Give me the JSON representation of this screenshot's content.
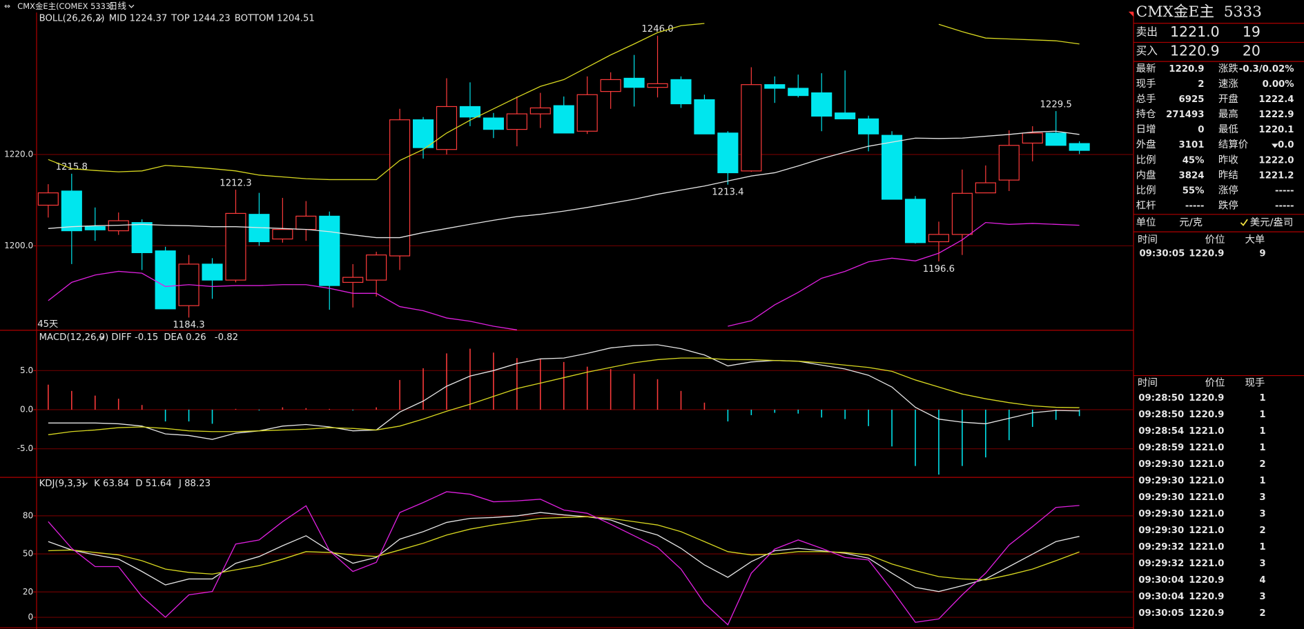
{
  "top_bar": {
    "symbol": "CMX金E主(COMEX 5333)",
    "period": "日线"
  },
  "main": {
    "indicator": "BOLL(26,26,2)",
    "mid_label": "MID 1224.37",
    "top_label": "TOP 1244.23",
    "bottom_label": "BOTTOM 1204.51",
    "span": "45天",
    "ylim": [
      1181.6,
      1251.1
    ],
    "yticks": [
      {
        "value": 1220,
        "label": "1220.0"
      },
      {
        "value": 1200,
        "label": "1200.0"
      }
    ],
    "up_color": "#ff3b3b",
    "down_color": "#00e6ee",
    "candles": {
      "open": [
        1208.9,
        1212.0,
        1204.2,
        1203.3,
        1205.1,
        1198.9,
        1186.9,
        1196.0,
        1192.5,
        1206.9,
        1201.5,
        1203.6,
        1206.5,
        1192.0,
        1192.5,
        1197.8,
        1227.6,
        1221.1,
        1230.5,
        1228.0,
        1225.5,
        1228.9,
        1230.7,
        1225.1,
        1233.8,
        1236.7,
        1234.7,
        1236.4,
        1232.0,
        1224.7,
        1216.4,
        1235.3,
        1234.5,
        1233.5,
        1229.1,
        1227.8,
        1224.2,
        1210.2,
        1200.9,
        1202.5,
        1211.6,
        1214.4,
        1222.5,
        1224.7,
        1222.4
      ],
      "high": [
        1213.5,
        1215.8,
        1208.4,
        1207.3,
        1205.8,
        1199.8,
        1198.0,
        1197.3,
        1212.3,
        1211.6,
        1210.5,
        1209.8,
        1207.5,
        1196.0,
        1198.7,
        1230.0,
        1228.2,
        1236.7,
        1235.8,
        1229.1,
        1232.7,
        1233.5,
        1232.7,
        1237.1,
        1238.0,
        1241.8,
        1246.0,
        1237.1,
        1233.1,
        1225.1,
        1239.1,
        1237.1,
        1237.5,
        1237.8,
        1238.4,
        1228.5,
        1225.1,
        1210.9,
        1205.3,
        1216.7,
        1217.6,
        1225.3,
        1226.2,
        1229.5,
        1222.9
      ],
      "low": [
        1206.2,
        1196.0,
        1201.1,
        1202.4,
        1194.7,
        1186.2,
        1184.3,
        1188.4,
        1192.0,
        1200.0,
        1200.7,
        1201.1,
        1186.0,
        1186.5,
        1188.9,
        1194.7,
        1219.1,
        1220.0,
        1226.2,
        1223.6,
        1221.8,
        1225.8,
        1224.7,
        1224.5,
        1230.0,
        1230.5,
        1232.5,
        1230.2,
        1224.5,
        1213.4,
        1216.2,
        1231.3,
        1232.5,
        1225.1,
        1227.8,
        1220.7,
        1210.2,
        1200.5,
        1196.6,
        1198.0,
        1211.6,
        1212.0,
        1218.5,
        1222.0,
        1220.1
      ],
      "close": [
        1211.6,
        1203.3,
        1203.5,
        1205.5,
        1198.5,
        1186.2,
        1196.0,
        1192.5,
        1207.1,
        1200.9,
        1203.6,
        1206.5,
        1191.3,
        1193.1,
        1198.0,
        1227.6,
        1221.5,
        1230.5,
        1228.2,
        1225.5,
        1228.9,
        1230.2,
        1224.7,
        1233.1,
        1236.4,
        1234.7,
        1235.5,
        1231.1,
        1224.5,
        1216.0,
        1235.3,
        1234.5,
        1232.9,
        1228.4,
        1227.8,
        1224.5,
        1210.2,
        1200.7,
        1202.5,
        1211.5,
        1213.8,
        1222.0,
        1224.7,
        1222.0,
        1220.9
      ],
      "high_labels": [
        null,
        "1215.8",
        null,
        null,
        null,
        null,
        null,
        null,
        "1212.3",
        null,
        null,
        null,
        null,
        null,
        null,
        null,
        null,
        null,
        null,
        null,
        null,
        null,
        null,
        null,
        null,
        null,
        "1246.0",
        null,
        null,
        null,
        null,
        null,
        null,
        null,
        null,
        null,
        null,
        null,
        null,
        null,
        null,
        null,
        null,
        "1229.5",
        null
      ],
      "low_labels": [
        null,
        null,
        null,
        null,
        null,
        null,
        "1184.3",
        null,
        null,
        null,
        null,
        null,
        null,
        null,
        null,
        null,
        null,
        null,
        null,
        null,
        null,
        null,
        null,
        null,
        null,
        null,
        null,
        null,
        null,
        "1213.4",
        null,
        null,
        null,
        null,
        null,
        null,
        null,
        null,
        "1196.6",
        null,
        null,
        null,
        null,
        null,
        null
      ]
    },
    "mid": {
      "color": "#e6e6e6",
      "values": [
        1203.8,
        1204.2,
        1204.4,
        1204.5,
        1204.7,
        1204.5,
        1204.4,
        1204.2,
        1204.2,
        1204.0,
        1203.8,
        1203.6,
        1203.1,
        1202.4,
        1201.8,
        1201.8,
        1202.9,
        1203.8,
        1204.7,
        1205.6,
        1206.4,
        1206.9,
        1207.6,
        1208.4,
        1209.3,
        1210.2,
        1211.3,
        1212.2,
        1213.1,
        1214.2,
        1215.3,
        1216.0,
        1217.5,
        1219.1,
        1220.5,
        1221.8,
        1222.7,
        1223.6,
        1223.5,
        1223.6,
        1224.0,
        1224.4,
        1224.9,
        1225.1,
        1224.4
      ]
    },
    "top": {
      "color": "#d8d820",
      "values": [
        1218.9,
        1216.9,
        1216.5,
        1216.2,
        1216.4,
        1217.6,
        1217.3,
        1216.9,
        1216.4,
        1215.5,
        1215.1,
        1214.7,
        1214.5,
        1214.5,
        1214.5,
        1218.7,
        1221.1,
        1224.7,
        1227.5,
        1230.0,
        1232.5,
        1234.9,
        1236.4,
        1239.1,
        1241.8,
        1244.2,
        1246.7,
        1248.2,
        1248.7,
        null,
        null,
        null,
        null,
        null,
        null,
        null,
        null,
        null,
        1248.5,
        1246.9,
        1245.5,
        1245.3,
        1245.1,
        1244.9,
        1244.2
      ]
    },
    "bottom": {
      "color": "#e020e0",
      "values": [
        1188.0,
        1192.0,
        1193.6,
        1194.4,
        1194.0,
        1191.1,
        1191.5,
        1191.1,
        1191.3,
        1191.3,
        1191.5,
        1191.5,
        1190.7,
        1189.6,
        1189.6,
        1186.7,
        1185.8,
        1184.2,
        1183.5,
        1182.4,
        1181.6,
        null,
        null,
        null,
        null,
        null,
        null,
        null,
        null,
        1182.4,
        1183.6,
        1187.1,
        1189.8,
        1192.9,
        1194.4,
        1196.5,
        1197.3,
        1196.7,
        1198.4,
        1201.3,
        1205.1,
        1204.7,
        1204.9,
        1204.7,
        1204.5
      ]
    }
  },
  "macd": {
    "indicator": "MACD(12,26,9)",
    "diff_label": "DIFF -0.15",
    "dea_label": "DEA 0.26",
    "macd_label": "-0.82",
    "ylim": [
      -8.6,
      10.1
    ],
    "yticks": [
      {
        "value": 5,
        "label": "5.0"
      },
      {
        "value": 0,
        "label": "0.0"
      },
      {
        "value": -5,
        "label": "-5.0"
      }
    ],
    "histogram": [
      3.2,
      2.4,
      1.8,
      1.4,
      0.6,
      -1.5,
      -1.5,
      -1.8,
      0.1,
      -0.1,
      0.3,
      0.2,
      0.1,
      -0.1,
      0.3,
      3.8,
      5.3,
      7.2,
      7.8,
      7.3,
      6.6,
      6.5,
      6.1,
      5.5,
      5.2,
      4.6,
      3.9,
      2.4,
      0.9,
      -1.5,
      -0.7,
      -0.4,
      -0.5,
      -1.0,
      -1.2,
      -2.1,
      -4.7,
      -7.2,
      -8.3,
      -7.2,
      -6.1,
      -3.9,
      -2.2,
      -1.3,
      -0.82
    ],
    "diff": {
      "color": "#e6e6e6",
      "values": [
        -1.7,
        -1.7,
        -1.7,
        -1.8,
        -2.1,
        -3.1,
        -3.3,
        -3.8,
        -3.0,
        -2.7,
        -2.1,
        -1.9,
        -2.2,
        -2.7,
        -2.6,
        -0.3,
        1.1,
        3.0,
        4.3,
        5.0,
        5.9,
        6.5,
        6.6,
        7.2,
        7.9,
        8.2,
        8.3,
        7.8,
        7.0,
        5.6,
        6.1,
        6.3,
        6.2,
        5.7,
        5.2,
        4.4,
        2.9,
        0.3,
        -1.2,
        -1.6,
        -1.8,
        -1.1,
        -0.4,
        -0.1,
        -0.15
      ]
    },
    "dea": {
      "color": "#d8d820",
      "values": [
        -3.2,
        -2.8,
        -2.6,
        -2.3,
        -2.2,
        -2.4,
        -2.7,
        -2.8,
        -2.8,
        -2.7,
        -2.6,
        -2.5,
        -2.3,
        -2.4,
        -2.6,
        -2.1,
        -1.2,
        -0.2,
        0.7,
        1.7,
        2.7,
        3.4,
        4.1,
        4.8,
        5.4,
        6.0,
        6.4,
        6.6,
        6.6,
        6.4,
        6.4,
        6.3,
        6.2,
        6.0,
        5.7,
        5.4,
        4.9,
        3.8,
        2.9,
        2.0,
        1.4,
        0.9,
        0.5,
        0.3,
        0.26
      ]
    }
  },
  "kdj": {
    "indicator": "KDJ(9,3,3)",
    "k_label": "K 63.84",
    "d_label": "D 51.64",
    "j_label": "J 88.23",
    "ylim": [
      -7.9,
      110
    ],
    "yticks": [
      80,
      50,
      20,
      0
    ],
    "k": {
      "color": "#e6e6e6",
      "values": [
        59.7,
        53.1,
        49.2,
        45.9,
        36.1,
        25.6,
        30.2,
        30.2,
        42.6,
        47.9,
        56.4,
        64.3,
        52.5,
        42.6,
        47.2,
        61.6,
        67.5,
        74.8,
        78.0,
        78.7,
        80.0,
        82.6,
        80.7,
        79.3,
        76.7,
        70.2,
        64.9,
        54.4,
        41.3,
        31.5,
        43.9,
        52.5,
        54.4,
        52.5,
        50.5,
        46.6,
        34.8,
        23.6,
        20.3,
        24.9,
        30.2,
        40.0,
        49.8,
        59.7,
        63.8
      ]
    },
    "d": {
      "color": "#d8d820",
      "values": [
        52.5,
        53.1,
        51.1,
        49.2,
        44.6,
        38.0,
        35.4,
        34.1,
        37.4,
        40.7,
        45.9,
        51.8,
        51.1,
        49.2,
        47.9,
        53.1,
        58.4,
        64.9,
        69.5,
        72.8,
        75.4,
        78.0,
        78.7,
        79.3,
        78.0,
        75.4,
        72.8,
        67.5,
        59.7,
        51.8,
        49.2,
        49.8,
        51.8,
        51.8,
        51.1,
        49.2,
        42.0,
        36.7,
        32.1,
        30.2,
        29.5,
        33.4,
        38.0,
        44.6,
        51.6
      ]
    },
    "j": {
      "color": "#e020e0",
      "values": [
        75.4,
        54.4,
        40.0,
        40.0,
        16.4,
        0,
        17.7,
        20.3,
        57.7,
        61.0,
        75.4,
        87.9,
        52.5,
        36.1,
        43.3,
        82.6,
        90.5,
        99.0,
        97.0,
        91.1,
        91.8,
        93.1,
        84.6,
        82.0,
        73.4,
        64.3,
        55.1,
        38.0,
        11.1,
        -5.9,
        34.8,
        53.8,
        61.0,
        54.4,
        47.2,
        45.2,
        21.6,
        -3.9,
        -1.3,
        17.7,
        34.8,
        57.0,
        71.5,
        86.6,
        88.2
      ]
    }
  },
  "quote": {
    "title": "CMX金E主  5333",
    "sell": {
      "label": "卖出",
      "price": "1221.0",
      "volume": "19"
    },
    "buy": {
      "label": "买入",
      "price": "1220.9",
      "volume": "20"
    },
    "stats": [
      [
        {
          "label": "最新",
          "value": "1220.9",
          "color": "#33e033"
        },
        {
          "label": "涨跌",
          "value": "-0.3/0.02%",
          "color": "#33e033"
        }
      ],
      [
        {
          "label": "现手",
          "value": "2",
          "color": "#f0e040"
        },
        {
          "label": "速涨",
          "value": "0.00%",
          "color": "#e6e6e6"
        }
      ],
      [
        {
          "label": "总手",
          "value": "6925",
          "color": "#f0e040"
        },
        {
          "label": "开盘",
          "value": "1222.4",
          "color": "#ff4040"
        }
      ],
      [
        {
          "label": "持仓",
          "value": "271493",
          "color": "#f0e040"
        },
        {
          "label": "最高",
          "value": "1222.9",
          "color": "#ff4040"
        }
      ],
      [
        {
          "label": "日增",
          "value": "0",
          "color": "#f0e040"
        },
        {
          "label": "最低",
          "value": "1220.1",
          "color": "#33e033"
        }
      ],
      [
        {
          "label": "外盘",
          "value": "3101",
          "color": "#f0e040"
        },
        {
          "label": "结算价",
          "value": "0.0",
          "color": "#e6e6e6"
        }
      ],
      [
        {
          "label": "比例",
          "value": "45%",
          "color": "#f0e040"
        },
        {
          "label": "昨收",
          "value": "1222.0",
          "color": "#e6e6e6"
        }
      ],
      [
        {
          "label": "内盘",
          "value": "3824",
          "color": "#f0e040"
        },
        {
          "label": "昨结",
          "value": "1221.2",
          "color": "#e6e6e6"
        }
      ],
      [
        {
          "label": "比例",
          "value": "55%",
          "color": "#f0e040"
        },
        {
          "label": "涨停",
          "value": "-----",
          "color": "#ff4040"
        }
      ],
      [
        {
          "label": "杠杆",
          "value": "-----",
          "color": "#f0e040"
        },
        {
          "label": "跌停",
          "value": "-----",
          "color": "#33e033"
        }
      ]
    ],
    "unit": {
      "label": "单位",
      "cny": "元/克",
      "usd": "美元/盎司"
    },
    "big_orders": {
      "headers": [
        "时间",
        "价位",
        "大单"
      ],
      "rows": [
        [
          "09:30:05",
          "1220.9",
          "9"
        ]
      ]
    },
    "ticks": {
      "headers": [
        "时间",
        "价位",
        "现手"
      ],
      "rows": [
        {
          "time": "09:28:50",
          "price": "1220.9",
          "volume": "1",
          "color": "#33e033"
        },
        {
          "time": "09:28:50",
          "price": "1220.9",
          "volume": "1",
          "color": "#ff4040"
        },
        {
          "time": "09:28:54",
          "price": "1221.0",
          "volume": "1",
          "color": "#ff4040"
        },
        {
          "time": "09:28:59",
          "price": "1221.0",
          "volume": "1",
          "color": "#ff4040"
        },
        {
          "time": "09:29:30",
          "price": "1221.0",
          "volume": "2",
          "color": "#ff4040"
        },
        {
          "time": "09:29:30",
          "price": "1221.0",
          "volume": "1",
          "color": "#ff4040"
        },
        {
          "time": "09:29:30",
          "price": "1221.0",
          "volume": "3",
          "color": "#ff4040"
        },
        {
          "time": "09:29:30",
          "price": "1221.0",
          "volume": "3",
          "color": "#33e033"
        },
        {
          "time": "09:29:30",
          "price": "1221.0",
          "volume": "2",
          "color": "#33e033"
        },
        {
          "time": "09:29:32",
          "price": "1221.0",
          "volume": "1",
          "color": "#33e033"
        },
        {
          "time": "09:29:32",
          "price": "1221.0",
          "volume": "3",
          "color": "#33e033"
        },
        {
          "time": "09:30:04",
          "price": "1220.9",
          "volume": "4",
          "color": "#33e033"
        },
        {
          "time": "09:30:04",
          "price": "1220.9",
          "volume": "3",
          "color": "#33e033"
        },
        {
          "time": "09:30:05",
          "price": "1220.9",
          "volume": "2",
          "color": "#33e033"
        }
      ]
    }
  }
}
